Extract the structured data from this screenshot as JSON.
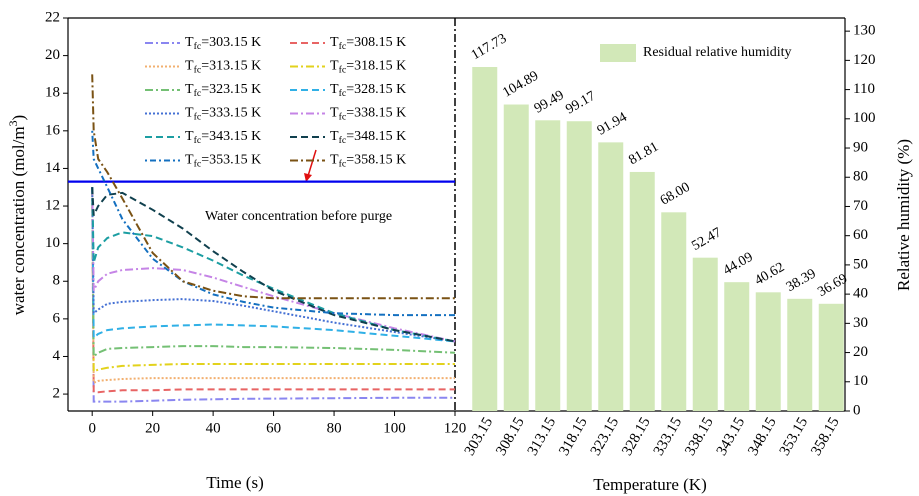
{
  "chart_data": [
    {
      "type": "line",
      "x_label": "Time (s)",
      "y_label": "water concentration (mol/m3)",
      "x": [
        0,
        0.5,
        2,
        5,
        10,
        20,
        30,
        40,
        50,
        60,
        80,
        100,
        120
      ],
      "xlim": [
        -8,
        120
      ],
      "xticks": [
        0,
        20,
        40,
        60,
        80,
        100,
        120
      ],
      "ylim": [
        1.1,
        22
      ],
      "yticks": [
        2,
        4,
        6,
        8,
        10,
        12,
        14,
        16,
        18,
        20,
        22
      ],
      "reference_line": {
        "value": 13.3,
        "color": "#0000ee",
        "label": "Water concentration before purge"
      },
      "series": [
        {
          "name": "Tfc=303.15 K",
          "color": "#8a86f0",
          "style": "dashdot",
          "values": [
            13,
            1.6,
            1.6,
            1.6,
            1.6,
            1.65,
            1.7,
            1.72,
            1.75,
            1.76,
            1.78,
            1.8,
            1.8
          ]
        },
        {
          "name": "Tfc=308.15 K",
          "color": "#e86464",
          "style": "dash",
          "values": [
            13,
            2.1,
            2.1,
            2.15,
            2.2,
            2.2,
            2.25,
            2.25,
            2.25,
            2.25,
            2.25,
            2.25,
            2.25
          ]
        },
        {
          "name": "Tfc=313.15 K",
          "color": "#f2b070",
          "style": "dot",
          "values": [
            13,
            2.6,
            2.7,
            2.75,
            2.8,
            2.85,
            2.85,
            2.85,
            2.85,
            2.85,
            2.85,
            2.85,
            2.85
          ]
        },
        {
          "name": "Tfc=318.15 K",
          "color": "#e2d21c",
          "style": "dashdot",
          "values": [
            13,
            3.2,
            3.3,
            3.4,
            3.5,
            3.55,
            3.6,
            3.6,
            3.6,
            3.6,
            3.6,
            3.6,
            3.6
          ]
        },
        {
          "name": "Tfc=323.15 K",
          "color": "#74c074",
          "style": "dashdot",
          "values": [
            13,
            4.0,
            4.2,
            4.4,
            4.45,
            4.5,
            4.55,
            4.55,
            4.5,
            4.5,
            4.45,
            4.35,
            4.2
          ]
        },
        {
          "name": "Tfc=328.15 K",
          "color": "#30b0e6",
          "style": "dash",
          "values": [
            13,
            5.0,
            5.2,
            5.4,
            5.5,
            5.6,
            5.65,
            5.7,
            5.65,
            5.6,
            5.4,
            5.1,
            4.8
          ]
        },
        {
          "name": "Tfc=333.15 K",
          "color": "#4470d4",
          "style": "dot",
          "values": [
            13,
            6.3,
            6.5,
            6.8,
            6.9,
            7.0,
            7.05,
            6.95,
            6.7,
            6.4,
            5.8,
            5.3,
            4.8
          ]
        },
        {
          "name": "Tfc=338.15 K",
          "color": "#c584e6",
          "style": "dashdot",
          "values": [
            13,
            7.5,
            8.0,
            8.4,
            8.6,
            8.7,
            8.6,
            8.2,
            7.7,
            7.2,
            6.3,
            5.5,
            4.8
          ]
        },
        {
          "name": "Tfc=343.15 K",
          "color": "#1c9ea2",
          "style": "dash",
          "values": [
            13,
            9.0,
            9.8,
            10.3,
            10.6,
            10.4,
            9.8,
            9.1,
            8.3,
            7.6,
            6.3,
            5.4,
            4.8
          ]
        },
        {
          "name": "Tfc=348.15 K",
          "color": "#10404e",
          "style": "dash",
          "values": [
            13,
            11.5,
            12.0,
            12.6,
            12.7,
            11.8,
            10.8,
            9.6,
            8.5,
            7.5,
            6.2,
            5.4,
            4.8
          ]
        },
        {
          "name": "Tfc=353.15 K",
          "color": "#1470c0",
          "style": "dotdash",
          "values": [
            16,
            14.5,
            14.0,
            13.0,
            11.3,
            9.2,
            8.0,
            7.3,
            6.9,
            6.6,
            6.3,
            6.2,
            6.2
          ]
        },
        {
          "name": "Tfc=358.15 K",
          "color": "#7a5214",
          "style": "dashdot",
          "values": [
            19,
            16.0,
            14.5,
            13.8,
            12.4,
            9.5,
            8.0,
            7.5,
            7.2,
            7.1,
            7.1,
            7.1,
            7.1
          ]
        }
      ]
    },
    {
      "type": "bar",
      "x_label": "Temperature (K)",
      "y_label": "Relative humidity (%)",
      "categories": [
        "303.15",
        "308.15",
        "313.15",
        "318.15",
        "323.15",
        "328.15",
        "333.15",
        "338.15",
        "343.15",
        "348.15",
        "353.15",
        "358.15"
      ],
      "series": [
        {
          "name": "Residual relative humidity",
          "color": "#d2e8b8",
          "values": [
            117.73,
            104.89,
            99.49,
            99.17,
            91.94,
            81.81,
            68.0,
            52.47,
            44.09,
            40.62,
            38.39,
            36.69
          ],
          "value_labels": [
            "117.73",
            "104.89",
            "99.49",
            "99.17",
            "91.94",
            "81.81",
            "68.00",
            "52.47",
            "44.09",
            "40.62",
            "38.39",
            "36.69"
          ]
        }
      ],
      "ylim": [
        0,
        134.5
      ],
      "yticks": [
        0,
        10,
        20,
        30,
        40,
        50,
        60,
        70,
        80,
        90,
        100,
        110,
        120,
        130
      ]
    }
  ]
}
